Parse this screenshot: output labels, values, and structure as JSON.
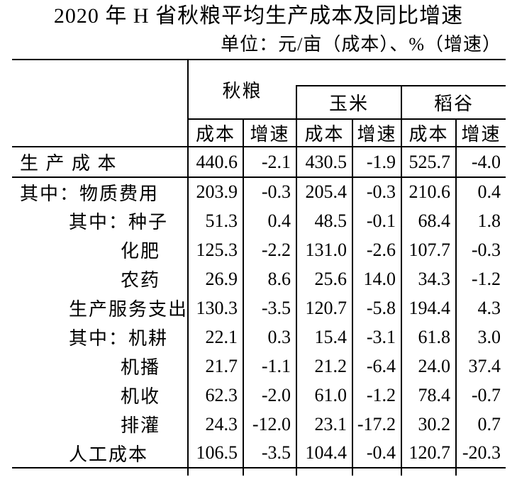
{
  "chart_data": {
    "type": "table",
    "title": "2020 年 H 省秋粮平均生产成本及同比增速",
    "unit_note": "单位：元/亩（成本）、%（增速）",
    "column_groups": [
      "秋粮",
      "玉米",
      "稻谷"
    ],
    "sub_columns": [
      "成本",
      "增速"
    ],
    "rows": [
      {
        "label": "生 产 成 本",
        "indent": 0,
        "values": [
          "440.6",
          "-2.1",
          "430.5",
          "-1.9",
          "525.7",
          "-4.0"
        ]
      },
      {
        "label": "其中：物质费用",
        "indent": 0,
        "values": [
          "203.9",
          "-0.3",
          "205.4",
          "-0.3",
          "210.6",
          "0.4"
        ]
      },
      {
        "label": "其中：种子",
        "indent": 1,
        "values": [
          "51.3",
          "0.4",
          "48.5",
          "-0.1",
          "68.4",
          "1.8"
        ]
      },
      {
        "label": "化肥",
        "indent": 2,
        "values": [
          "125.3",
          "-2.2",
          "131.0",
          "-2.6",
          "107.7",
          "-0.3"
        ]
      },
      {
        "label": "农药",
        "indent": 2,
        "values": [
          "26.9",
          "8.6",
          "25.6",
          "14.0",
          "34.3",
          "-1.2"
        ]
      },
      {
        "label": "生产服务支出",
        "indent": 1,
        "values": [
          "130.3",
          "-3.5",
          "120.7",
          "-5.8",
          "194.4",
          "4.3"
        ]
      },
      {
        "label": "其中：机耕",
        "indent": 1,
        "values": [
          "22.1",
          "0.3",
          "15.4",
          "-3.1",
          "61.8",
          "3.0"
        ]
      },
      {
        "label": "机播",
        "indent": 2,
        "values": [
          "21.7",
          "-1.1",
          "21.2",
          "-6.4",
          "24.0",
          "37.4"
        ]
      },
      {
        "label": "机收",
        "indent": 2,
        "values": [
          "62.3",
          "-2.0",
          "61.0",
          "-1.2",
          "78.4",
          "-0.7"
        ]
      },
      {
        "label": "排灌",
        "indent": 2,
        "values": [
          "24.3",
          "-12.0",
          "23.1",
          "-17.2",
          "30.2",
          "0.7"
        ]
      },
      {
        "label": "人工成本",
        "indent": 1,
        "values": [
          "106.5",
          "-3.5",
          "104.4",
          "-0.4",
          "120.7",
          "-20.3"
        ]
      }
    ],
    "colors": {
      "text": "#000000",
      "border": "#000000",
      "background": "#ffffff"
    }
  }
}
